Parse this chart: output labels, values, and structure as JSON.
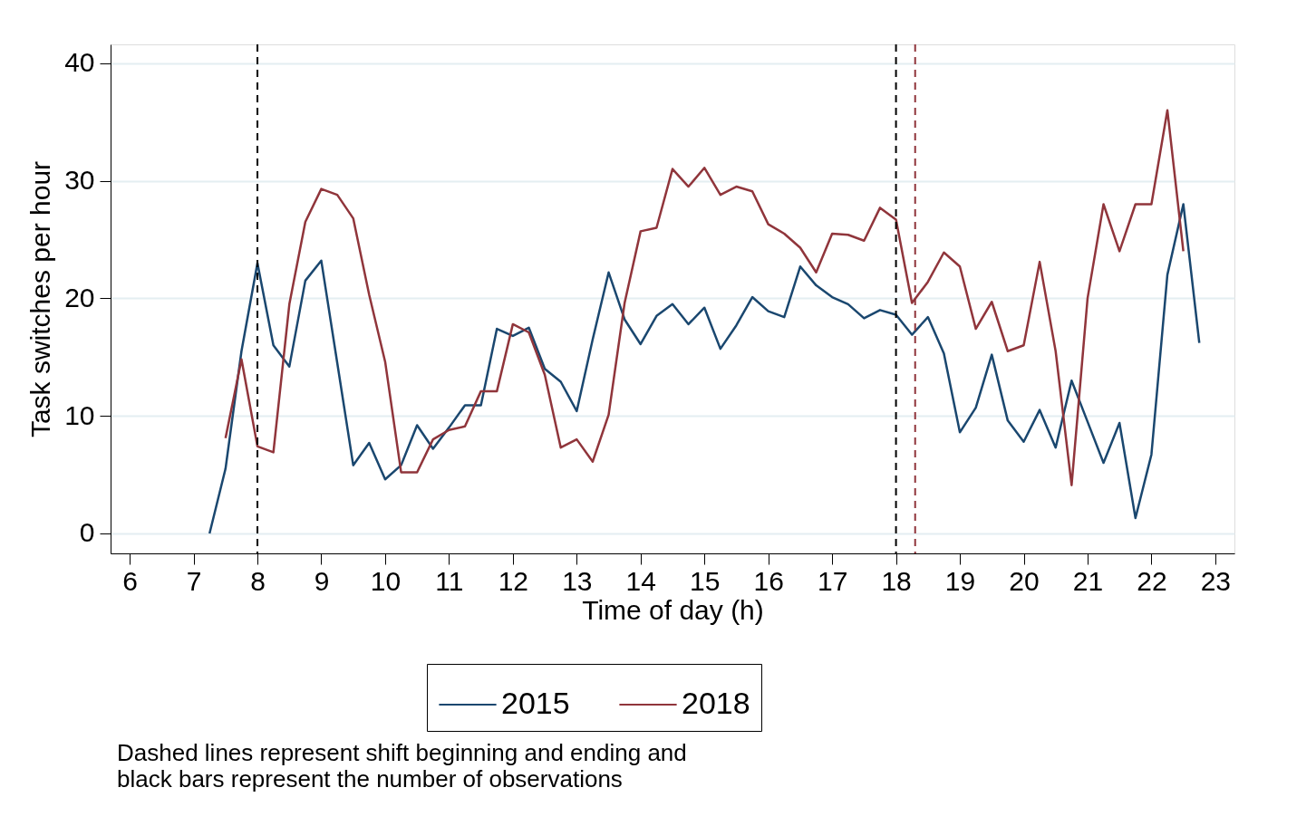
{
  "chart_data": {
    "type": "line",
    "xlabel": "Time of day (h)",
    "ylabel": "Task switches per hour",
    "xlim": [
      5.7,
      23.3
    ],
    "ylim": [
      -1.7,
      41.6
    ],
    "xticks": [
      6,
      7,
      8,
      9,
      10,
      11,
      12,
      13,
      14,
      15,
      16,
      17,
      18,
      19,
      20,
      21,
      22,
      23
    ],
    "yticks": [
      0,
      10,
      20,
      30,
      40
    ],
    "grid": "y",
    "legend": "bottom",
    "line_style": "solid",
    "series": [
      {
        "name": "2015",
        "color": "#1a476f",
        "x": [
          7.25,
          7.5,
          7.75,
          8,
          8.25,
          8.5,
          8.75,
          9,
          9.25,
          9.5,
          9.75,
          10,
          10.25,
          10.5,
          10.75,
          11,
          11.25,
          11.5,
          11.75,
          12,
          12.25,
          12.5,
          12.75,
          13,
          13.25,
          13.5,
          13.75,
          14,
          14.25,
          14.5,
          14.75,
          15,
          15.25,
          15.5,
          15.75,
          16,
          16.25,
          16.5,
          16.75,
          17,
          17.25,
          17.5,
          17.75,
          18,
          18.25,
          18.5,
          18.75,
          19,
          19.25,
          19.5,
          19.75,
          20,
          20.25,
          20.5,
          20.75,
          21,
          21.25,
          21.5,
          21.75,
          22,
          22.25,
          22.5,
          22.75
        ],
        "values": [
          0,
          5.5,
          15.5,
          23,
          16,
          14.2,
          21.5,
          23.2,
          14.5,
          5.8,
          7.7,
          4.6,
          5.8,
          9.2,
          7.2,
          9,
          10.9,
          10.9,
          17.4,
          16.8,
          17.5,
          14,
          12.9,
          10.4,
          16.5,
          22.2,
          18.2,
          16.1,
          18.5,
          19.5,
          17.8,
          19.2,
          15.7,
          17.7,
          20.1,
          18.9,
          18.4,
          22.7,
          21.1,
          20.1,
          19.5,
          18.3,
          19,
          18.6,
          16.9,
          18.4,
          15.3,
          8.6,
          10.7,
          15.2,
          9.6,
          7.8,
          10.5,
          7.3,
          13,
          9.5,
          6,
          9.4,
          1.3,
          6.7,
          22,
          28,
          16.2
        ]
      },
      {
        "name": "2018",
        "color": "#90353b",
        "x": [
          7.5,
          7.75,
          8,
          8.25,
          8.5,
          8.75,
          9,
          9.25,
          9.5,
          9.75,
          10,
          10.25,
          10.5,
          10.75,
          11,
          11.25,
          11.5,
          11.75,
          12,
          12.25,
          12.5,
          12.75,
          13,
          13.25,
          13.5,
          13.75,
          14,
          14.25,
          14.5,
          14.75,
          15,
          15.25,
          15.5,
          15.75,
          16,
          16.25,
          16.5,
          16.75,
          17,
          17.25,
          17.5,
          17.75,
          18,
          18.25,
          18.5,
          18.75,
          19,
          19.25,
          19.5,
          19.75,
          20,
          20.25,
          20.5,
          20.75,
          21,
          21.25,
          21.5,
          21.75,
          22,
          22.25,
          22.5
        ],
        "values": [
          8.1,
          14.8,
          7.4,
          6.9,
          19.5,
          26.5,
          29.3,
          28.8,
          26.8,
          20.3,
          14.6,
          5.2,
          5.2,
          8,
          8.8,
          9.1,
          12.1,
          12.1,
          17.8,
          17.1,
          13.5,
          7.3,
          8,
          6.1,
          10.1,
          19.6,
          25.7,
          26,
          31,
          29.5,
          31.1,
          28.8,
          29.5,
          29.1,
          26.3,
          25.5,
          24.3,
          22.2,
          25.5,
          25.4,
          24.9,
          27.7,
          26.7,
          19.6,
          21.4,
          23.9,
          22.7,
          17.4,
          19.7,
          15.5,
          16,
          23.1,
          15.5,
          4.1,
          20,
          28,
          24,
          28,
          28,
          36,
          24
        ]
      }
    ],
    "ref_lines": [
      {
        "axis": "x",
        "value": 8,
        "color": "#000000",
        "line_style": "dashed"
      },
      {
        "axis": "x",
        "value": 18,
        "color": "#000000",
        "line_style": "dashed"
      },
      {
        "axis": "x",
        "value": 18.3,
        "color": "#90353b",
        "line_style": "dashed"
      }
    ],
    "annotations": [
      "Dashed lines represent shift beginning and ending and\nblack bars represent the number of observations"
    ]
  }
}
